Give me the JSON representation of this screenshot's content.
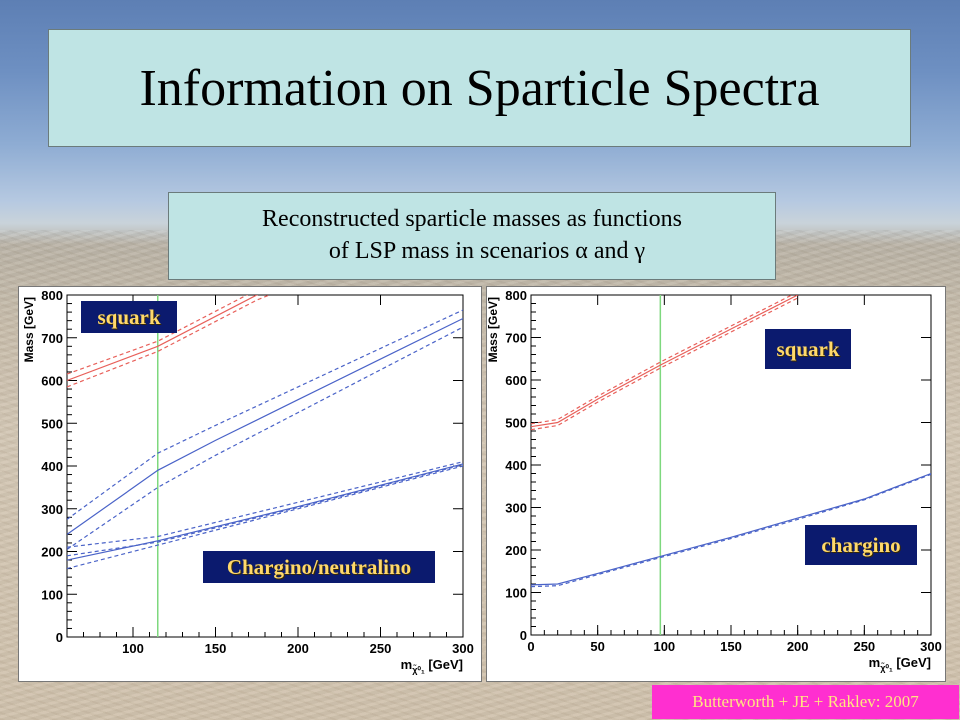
{
  "slide": {
    "title": "Information on Sparticle Spectra",
    "subtitle_line1": "Reconstructed sparticle masses as functions",
    "subtitle_line2": "of LSP mass in scenarios α and γ",
    "credit": "Butterworth + JE + Raklev: 2007"
  },
  "chart_data": [
    {
      "type": "line",
      "xlabel_main": "m",
      "xlabel_sub": "χ̃⁰₁",
      "xlabel_unit": " [GeV]",
      "ylabel": "Mass [GeV]",
      "xlim": [
        60,
        300
      ],
      "ylim": [
        0,
        800
      ],
      "xticks": [
        100,
        150,
        200,
        250,
        300
      ],
      "yticks": [
        0,
        100,
        200,
        300,
        400,
        500,
        600,
        700,
        800
      ],
      "vline_x": 115,
      "annotations": {
        "upper": "squark",
        "lower": "Chargino/neutralino"
      },
      "colors": {
        "red": "#e8605a",
        "blue": "#4a63c8",
        "green": "#7ed87e"
      },
      "series": [
        {
          "color": "red",
          "style": "solid",
          "x": [
            60,
            115,
            175,
            300
          ],
          "y": [
            600,
            680,
            800,
            1000
          ]
        },
        {
          "color": "red",
          "style": "dashed",
          "x": [
            60,
            115,
            175,
            300
          ],
          "y": [
            615,
            692,
            812,
            1015
          ]
        },
        {
          "color": "red",
          "style": "dashed",
          "x": [
            60,
            115,
            175,
            300
          ],
          "y": [
            585,
            668,
            788,
            985
          ]
        },
        {
          "color": "blue",
          "style": "solid",
          "x": [
            60,
            115,
            150,
            200,
            250,
            300
          ],
          "y": [
            240,
            390,
            460,
            555,
            650,
            745
          ]
        },
        {
          "color": "blue",
          "style": "dashed",
          "x": [
            60,
            115,
            150,
            200,
            250,
            300
          ],
          "y": [
            275,
            430,
            495,
            585,
            675,
            765
          ]
        },
        {
          "color": "blue",
          "style": "dashed",
          "x": [
            60,
            115,
            150,
            200,
            250,
            300
          ],
          "y": [
            205,
            350,
            425,
            525,
            625,
            725
          ]
        },
        {
          "color": "blue",
          "style": "solid",
          "x": [
            60,
            115,
            200,
            300
          ],
          "y": [
            180,
            225,
            305,
            405
          ]
        },
        {
          "color": "blue",
          "style": "dashed",
          "x": [
            60,
            115,
            200,
            300
          ],
          "y": [
            210,
            235,
            315,
            410
          ]
        },
        {
          "color": "blue",
          "style": "dashed",
          "x": [
            60,
            115,
            200,
            300
          ],
          "y": [
            160,
            215,
            300,
            400
          ]
        },
        {
          "color": "blue",
          "style": "dashed",
          "x": [
            60,
            115,
            200,
            300
          ],
          "y": [
            190,
            222,
            303,
            403
          ]
        }
      ]
    },
    {
      "type": "line",
      "xlabel_main": "m",
      "xlabel_sub": "χ̃⁰₁",
      "xlabel_unit": " [GeV]",
      "ylabel": "Mass [GeV]",
      "xlim": [
        0,
        300
      ],
      "ylim": [
        0,
        800
      ],
      "xticks": [
        0,
        50,
        100,
        150,
        200,
        250,
        300
      ],
      "yticks": [
        0,
        100,
        200,
        300,
        400,
        500,
        600,
        700,
        800
      ],
      "vline_x": 97,
      "annotations": {
        "upper": "squark",
        "lower": "chargino"
      },
      "colors": {
        "red": "#e8605a",
        "blue": "#4a63c8",
        "green": "#7ed87e"
      },
      "series": [
        {
          "color": "red",
          "style": "solid",
          "x": [
            0,
            20,
            50,
            97,
            150,
            200
          ],
          "y": [
            490,
            500,
            555,
            635,
            720,
            800
          ]
        },
        {
          "color": "red",
          "style": "dashed",
          "x": [
            0,
            20,
            50,
            97,
            150,
            200
          ],
          "y": [
            497,
            507,
            562,
            642,
            727,
            807
          ]
        },
        {
          "color": "red",
          "style": "dashed",
          "x": [
            0,
            20,
            50,
            97,
            150,
            200
          ],
          "y": [
            483,
            493,
            548,
            628,
            713,
            793
          ]
        },
        {
          "color": "blue",
          "style": "solid",
          "x": [
            0,
            20,
            50,
            97,
            150,
            200,
            250,
            300
          ],
          "y": [
            118,
            120,
            145,
            185,
            230,
            275,
            320,
            380
          ]
        },
        {
          "color": "blue",
          "style": "dashed",
          "x": [
            0,
            20,
            50,
            97,
            150,
            200,
            250,
            300
          ],
          "y": [
            114,
            116,
            142,
            182,
            227,
            272,
            318,
            378
          ]
        }
      ]
    }
  ]
}
